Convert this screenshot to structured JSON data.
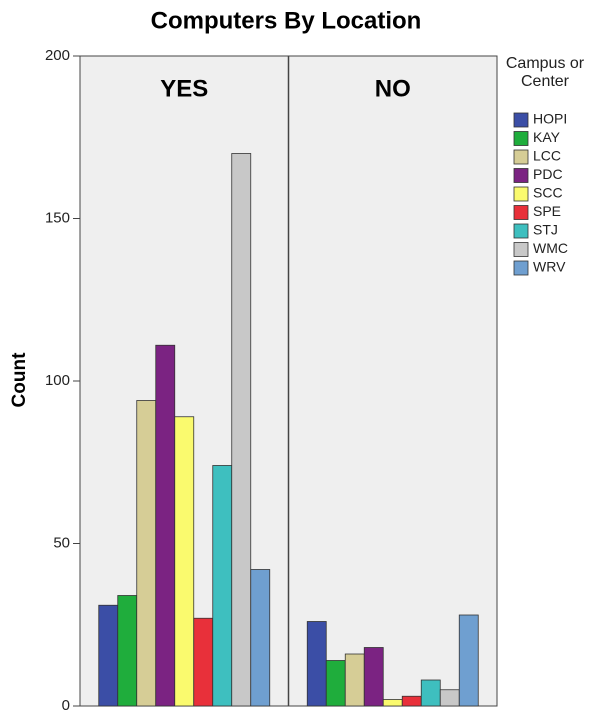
{
  "chart_data": {
    "type": "bar",
    "title": "Computers By Location",
    "y_label": "Count",
    "categories": [
      "YES",
      "NO"
    ],
    "legend_title": "Campus or Center",
    "series": [
      {
        "name": "HOPI",
        "color": "#3b4ea6",
        "values": [
          31,
          26
        ]
      },
      {
        "name": "KAY",
        "color": "#1fad3c",
        "values": [
          34,
          14
        ]
      },
      {
        "name": "LCC",
        "color": "#d6cd96",
        "values": [
          94,
          16
        ]
      },
      {
        "name": "PDC",
        "color": "#7b2382",
        "values": [
          111,
          18
        ]
      },
      {
        "name": "SCC",
        "color": "#fafa6e",
        "values": [
          89,
          2
        ]
      },
      {
        "name": "SPE",
        "color": "#e8303a",
        "values": [
          27,
          3
        ]
      },
      {
        "name": "STJ",
        "color": "#3ebfbf",
        "values": [
          74,
          8
        ]
      },
      {
        "name": "WMC",
        "color": "#c8c8c8",
        "values": [
          170,
          5
        ]
      },
      {
        "name": "WRV",
        "color": "#6f9fd0",
        "values": [
          42,
          28
        ]
      }
    ],
    "ylim": [
      0,
      200
    ],
    "yticks": [
      0,
      50,
      100,
      150,
      200
    ]
  }
}
